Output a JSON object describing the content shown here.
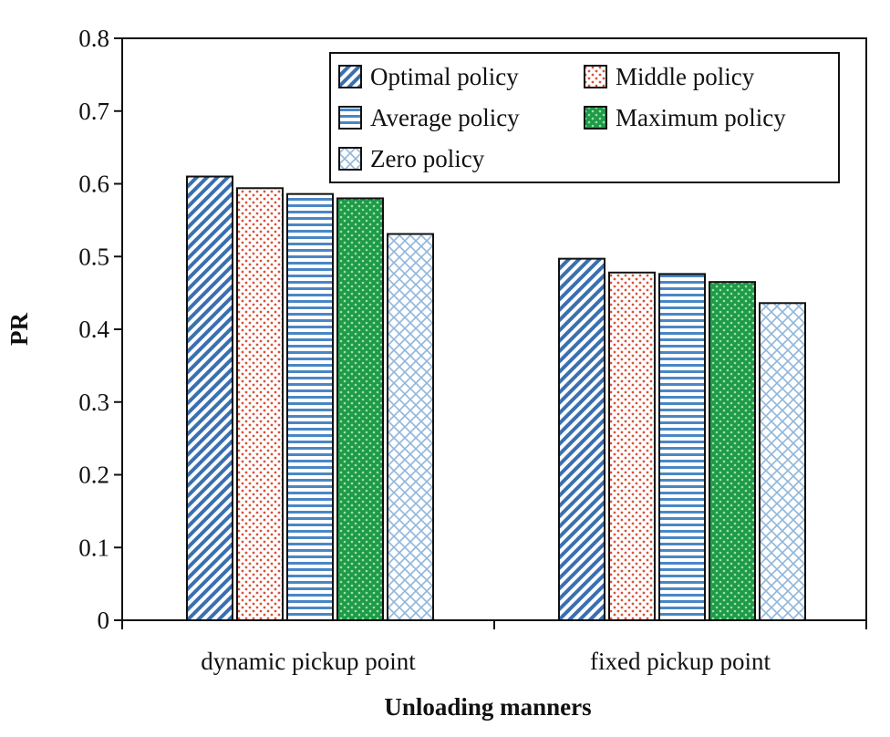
{
  "chart_data": {
    "type": "bar",
    "title": "",
    "xlabel": "Unloading manners",
    "ylabel": "PR",
    "ylim": [
      0,
      0.8
    ],
    "yticks": [
      "0",
      "0.1",
      "0.2",
      "0.3",
      "0.4",
      "0.5",
      "0.6",
      "0.7",
      "0.8"
    ],
    "categories": [
      "dynamic pickup point",
      "fixed pickup point"
    ],
    "series": [
      {
        "name": "Optimal policy",
        "values": [
          0.61,
          0.497
        ],
        "color": "#3a6fb0",
        "pattern": "diagonal-stripes"
      },
      {
        "name": "Middle policy",
        "values": [
          0.594,
          0.478
        ],
        "color": "#d9533c",
        "pattern": "dots"
      },
      {
        "name": "Average policy",
        "values": [
          0.586,
          0.476
        ],
        "color": "#4a86c5",
        "pattern": "horizontal-stripes"
      },
      {
        "name": "Maximum policy",
        "values": [
          0.58,
          0.465
        ],
        "color": "#1e9b48",
        "pattern": "checker"
      },
      {
        "name": "Zero policy",
        "values": [
          0.531,
          0.436
        ],
        "color": "#8fb6da",
        "pattern": "crosshatch"
      }
    ],
    "legend": "top-right",
    "grid": false
  }
}
